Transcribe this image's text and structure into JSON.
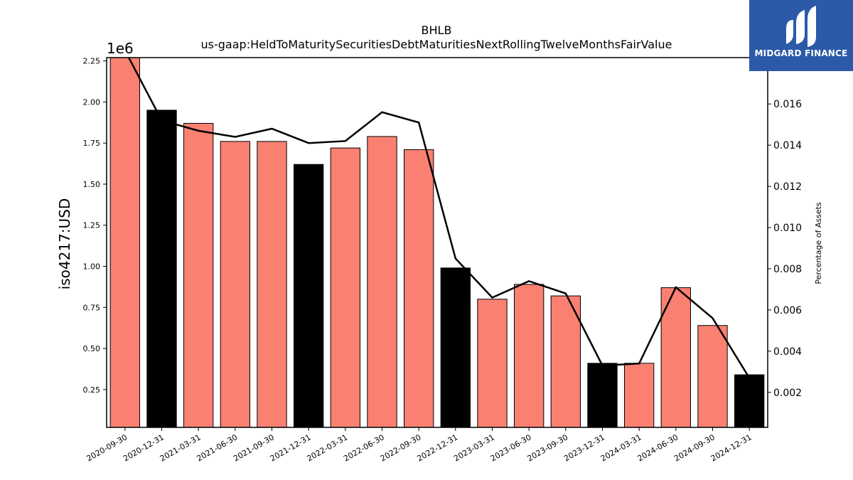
{
  "logo": {
    "text": "MIDGARD FINANCE",
    "color": "#2c5aa8"
  },
  "chart_data": {
    "type": "bar",
    "title": "BHLB",
    "subtitle": "us-gaap:HeldToMaturitySecuritiesDebtMaturitiesNextRollingTwelveMonthsFairValue",
    "ylabel": "iso4217:USD",
    "y2label": "Percentage of Assets",
    "y_multiplier": "1e6",
    "ylim": [
      0.02,
      2.27
    ],
    "y2lim": [
      0.0003,
      0.01825
    ],
    "yticks": [
      "0.25",
      "0.50",
      "0.75",
      "1.00",
      "1.25",
      "1.50",
      "1.75",
      "2.00",
      "2.25"
    ],
    "y2ticks": [
      "0.002",
      "0.004",
      "0.006",
      "0.008",
      "0.010",
      "0.012",
      "0.014",
      "0.016"
    ],
    "categories": [
      "2020-09-30",
      "2020-12-31",
      "2021-03-31",
      "2021-06-30",
      "2021-09-30",
      "2021-12-31",
      "2022-03-31",
      "2022-06-30",
      "2022-09-30",
      "2022-12-31",
      "2023-03-31",
      "2023-06-30",
      "2023-09-30",
      "2023-12-31",
      "2024-03-31",
      "2024-06-30",
      "2024-09-30",
      "2024-12-31"
    ],
    "series": [
      {
        "kind": "bar",
        "values": [
          2.28,
          1.95,
          1.87,
          1.76,
          1.76,
          1.62,
          1.72,
          1.79,
          1.71,
          0.99,
          0.8,
          0.89,
          0.82,
          0.41,
          0.41,
          0.87,
          0.64,
          0.34
        ],
        "colors": [
          "#fa8072",
          "#000000",
          "#fa8072",
          "#fa8072",
          "#fa8072",
          "#000000",
          "#fa8072",
          "#fa8072",
          "#fa8072",
          "#000000",
          "#fa8072",
          "#fa8072",
          "#fa8072",
          "#000000",
          "#fa8072",
          "#fa8072",
          "#fa8072",
          "#000000"
        ]
      },
      {
        "kind": "line",
        "axis": "right",
        "values": [
          0.0186,
          0.0152,
          0.0147,
          0.0144,
          0.0148,
          0.0141,
          0.0142,
          0.0156,
          0.0151,
          0.0085,
          0.0066,
          0.0074,
          0.0068,
          0.0033,
          0.0034,
          0.0071,
          0.0056,
          0.0027
        ],
        "color": "#000000"
      }
    ],
    "grid": false,
    "legend": "none"
  }
}
